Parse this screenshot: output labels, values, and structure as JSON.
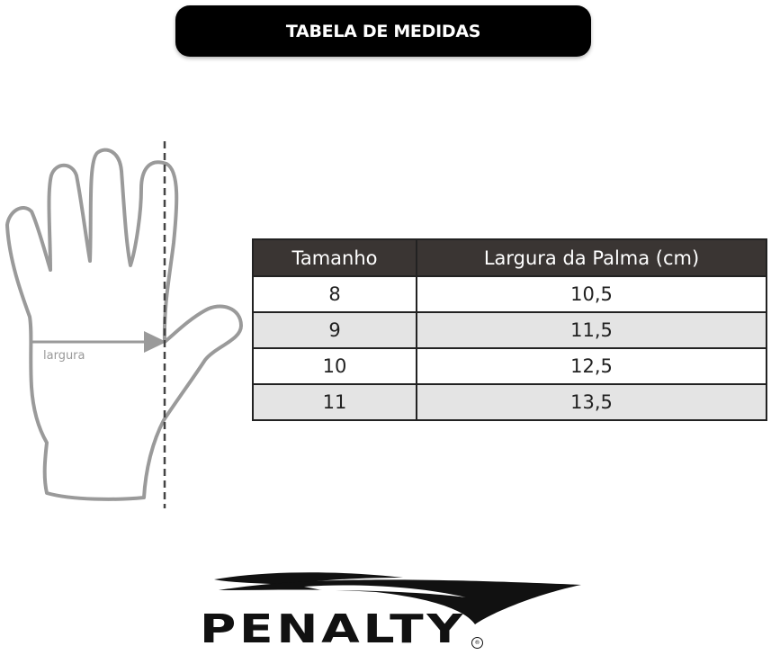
{
  "title": "TABELA DE MEDIDAS",
  "diagram": {
    "measure_label": "largura",
    "stroke_color": "#9a9a9a"
  },
  "table": {
    "headers": [
      "Tamanho",
      "Largura da Palma (cm)"
    ],
    "rows": [
      [
        "8",
        "10,5"
      ],
      [
        "9",
        "11,5"
      ],
      [
        "10",
        "12,5"
      ],
      [
        "11",
        "13,5"
      ]
    ],
    "header_color": "#3a3533",
    "alt_row_color": "#e4e4e4"
  },
  "logo": {
    "brand": "PENALTY",
    "registered": "®"
  }
}
